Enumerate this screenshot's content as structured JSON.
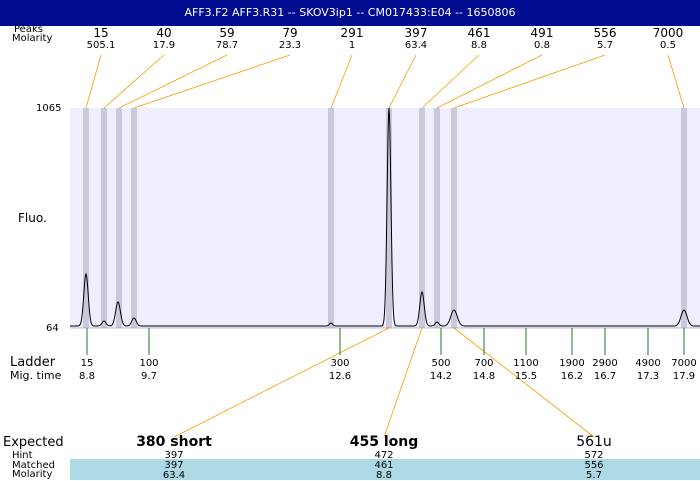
{
  "title": "AFF3.F2  AFF3.R31 -- SKOV3ip1 -- CM017433:E04 -- 1650806",
  "labels": {
    "peaks": "Peaks",
    "molarity": "Molarity",
    "y_top": "1065",
    "y_bottom": "64",
    "y_axis": "Fluo.",
    "ladder": "Ladder",
    "mig_time": "Mig. time",
    "expected": "Expected",
    "hint": "Hint",
    "matched": "Matched",
    "molarity_row": "Molarity"
  },
  "peaks": [
    {
      "size": "15",
      "molarity": "505.1"
    },
    {
      "size": "40",
      "molarity": "17.9"
    },
    {
      "size": "59",
      "molarity": "78.7"
    },
    {
      "size": "79",
      "molarity": "23.3"
    },
    {
      "size": "291",
      "molarity": "1"
    },
    {
      "size": "397",
      "molarity": "63.4"
    },
    {
      "size": "461",
      "molarity": "8.8"
    },
    {
      "size": "491",
      "molarity": "0.8"
    },
    {
      "size": "556",
      "molarity": "5.7"
    },
    {
      "size": "7000",
      "molarity": "0.5"
    }
  ],
  "ladder": [
    {
      "size": "15",
      "time": "8.8"
    },
    {
      "size": "100",
      "time": "9.7"
    },
    {
      "size": "300",
      "time": "12.6"
    },
    {
      "size": "500",
      "time": "14.2"
    },
    {
      "size": "700",
      "time": "14.8"
    },
    {
      "size": "1100",
      "time": "15.5"
    },
    {
      "size": "1900",
      "time": "16.2"
    },
    {
      "size": "2900",
      "time": "16.7"
    },
    {
      "size": "4900",
      "time": "17.3"
    },
    {
      "size": "7000",
      "time": "17.9"
    }
  ],
  "expected": [
    {
      "label": "380 short",
      "hint": "397",
      "matched": "397",
      "molarity": "63.4"
    },
    {
      "label": "455 long",
      "hint": "472",
      "matched": "461",
      "molarity": "8.8"
    },
    {
      "label": "561u",
      "hint": "572",
      "matched": "556",
      "molarity": "5.7"
    }
  ],
  "colors": {
    "title_bg": "#000c8f",
    "plot_bg": "#eeeeff",
    "peak_band": "#c9c9dc",
    "connector": "#f0a000",
    "ladder_tick": "#1f7a1f",
    "matched_bg": "#add8e6"
  },
  "chart_data": {
    "type": "line",
    "y_range_printed": [
      64,
      1065
    ],
    "peaks_size": [
      15,
      40,
      59,
      79,
      291,
      397,
      461,
      491,
      556,
      7000
    ],
    "peaks_molarity": [
      505.1,
      17.9,
      78.7,
      23.3,
      1,
      63.4,
      8.8,
      0.8,
      5.7,
      0.5
    ],
    "ladder_size": [
      15,
      100,
      300,
      500,
      700,
      1100,
      1900,
      2900,
      4900,
      7000
    ],
    "ladder_mig_time": [
      8.8,
      9.7,
      12.6,
      14.2,
      14.8,
      15.5,
      16.2,
      16.7,
      17.3,
      17.9
    ]
  }
}
